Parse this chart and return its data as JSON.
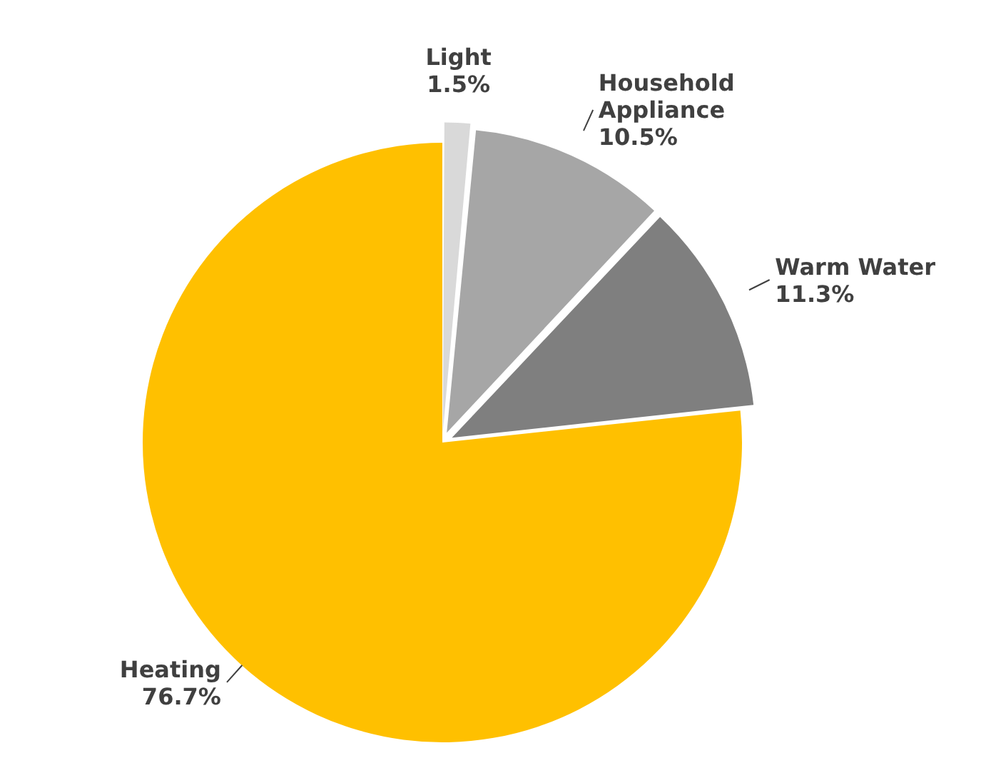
{
  "chart_data": {
    "type": "pie",
    "categories": [
      "Light",
      "Household Appliance",
      "Warm Water",
      "Heating"
    ],
    "values": [
      1.5,
      10.5,
      11.3,
      76.7
    ],
    "value_labels": [
      "1.5%",
      "10.5%",
      "11.3%",
      "76.7%"
    ],
    "colors": [
      "#d9d9d9",
      "#a6a6a6",
      "#7f7f7f",
      "#ffc000"
    ],
    "legend": false
  }
}
